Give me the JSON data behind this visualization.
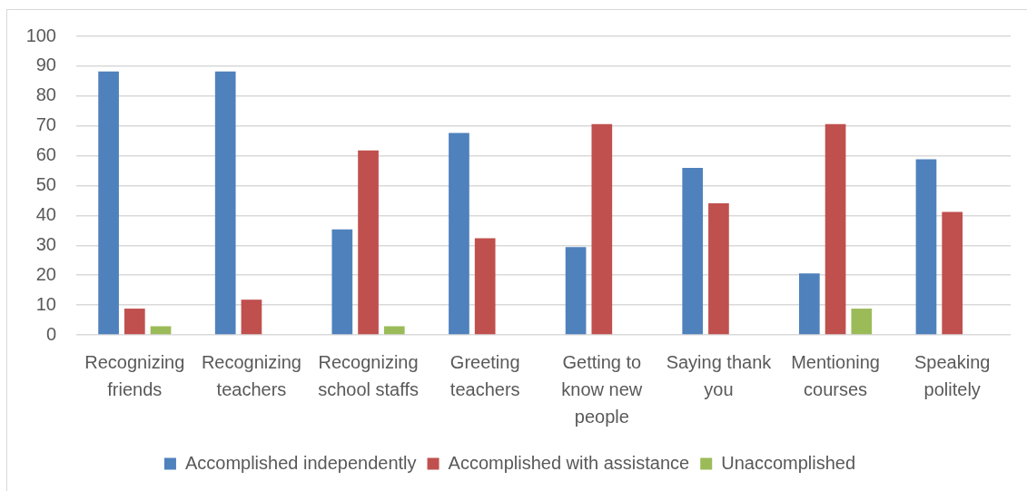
{
  "chart_data": {
    "type": "bar",
    "categories": [
      "Recognizing friends",
      "Recognizing teachers",
      "Recognizing school staffs",
      "Greeting teachers",
      "Getting to know new people",
      "Saying thank you",
      "Mentioning courses",
      "Speaking politely"
    ],
    "series": [
      {
        "name": "Accomplished independently",
        "color": "#4f81bd",
        "values": [
          88.2,
          88.2,
          35.3,
          67.6,
          29.4,
          55.9,
          20.6,
          58.8
        ]
      },
      {
        "name": "Accomplished with assistance",
        "color": "#c0504d",
        "values": [
          8.8,
          11.8,
          61.8,
          32.4,
          70.6,
          44.1,
          70.6,
          41.2
        ]
      },
      {
        "name": "Unaccomplished",
        "color": "#9bbb59",
        "values": [
          2.9,
          0,
          2.9,
          0,
          0,
          0,
          8.8,
          0
        ]
      }
    ],
    "ylim": [
      0,
      100
    ],
    "yticks": [
      0,
      10,
      20,
      30,
      40,
      50,
      60,
      70,
      80,
      90,
      100
    ],
    "grid": "y",
    "legend": "bottom"
  }
}
